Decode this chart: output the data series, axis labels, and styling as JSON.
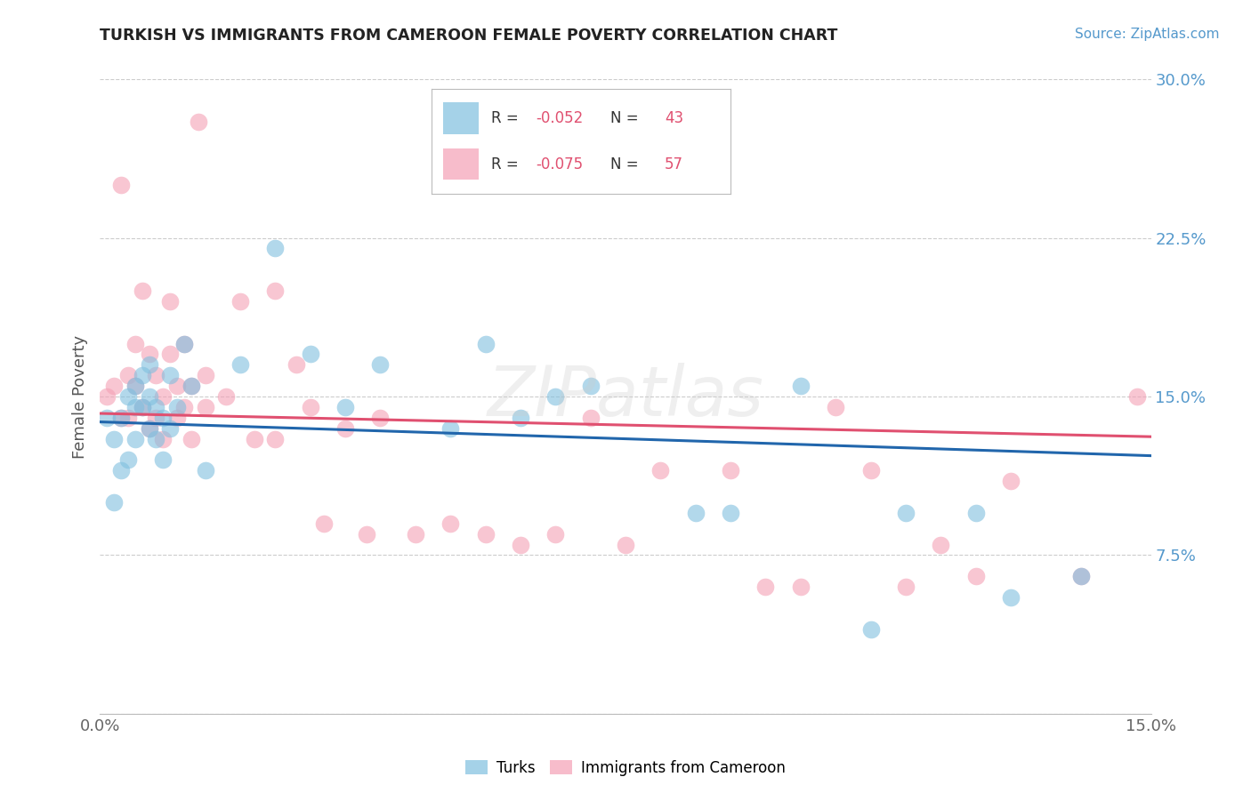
{
  "title": "TURKISH VS IMMIGRANTS FROM CAMEROON FEMALE POVERTY CORRELATION CHART",
  "source": "Source: ZipAtlas.com",
  "ylabel": "Female Poverty",
  "x_min": 0.0,
  "x_max": 0.15,
  "y_min": 0.0,
  "y_max": 0.3,
  "legend_r1": "R = -0.052",
  "legend_n1": "N = 43",
  "legend_r2": "R = -0.075",
  "legend_n2": "N = 57",
  "blue_color": "#7fbfdf",
  "pink_color": "#f4a0b5",
  "blue_line_color": "#2166ac",
  "pink_line_color": "#e05070",
  "axis_label_color": "#5599cc",
  "watermark": "ZIPatlas",
  "turks_points_x": [
    0.001,
    0.002,
    0.002,
    0.003,
    0.003,
    0.004,
    0.004,
    0.005,
    0.005,
    0.005,
    0.006,
    0.006,
    0.007,
    0.007,
    0.007,
    0.008,
    0.008,
    0.009,
    0.009,
    0.01,
    0.01,
    0.011,
    0.012,
    0.013,
    0.015,
    0.02,
    0.025,
    0.03,
    0.035,
    0.04,
    0.05,
    0.055,
    0.06,
    0.065,
    0.07,
    0.085,
    0.09,
    0.1,
    0.11,
    0.115,
    0.125,
    0.13,
    0.14
  ],
  "turks_points_y": [
    0.14,
    0.1,
    0.13,
    0.115,
    0.14,
    0.12,
    0.15,
    0.13,
    0.145,
    0.155,
    0.145,
    0.16,
    0.135,
    0.15,
    0.165,
    0.13,
    0.145,
    0.12,
    0.14,
    0.135,
    0.16,
    0.145,
    0.175,
    0.155,
    0.115,
    0.165,
    0.22,
    0.17,
    0.145,
    0.165,
    0.135,
    0.175,
    0.14,
    0.15,
    0.155,
    0.095,
    0.095,
    0.155,
    0.04,
    0.095,
    0.095,
    0.055,
    0.065
  ],
  "cameroon_points_x": [
    0.001,
    0.002,
    0.003,
    0.003,
    0.004,
    0.004,
    0.005,
    0.005,
    0.006,
    0.006,
    0.007,
    0.007,
    0.008,
    0.008,
    0.009,
    0.009,
    0.01,
    0.01,
    0.011,
    0.011,
    0.012,
    0.012,
    0.013,
    0.013,
    0.014,
    0.015,
    0.015,
    0.018,
    0.02,
    0.022,
    0.025,
    0.025,
    0.028,
    0.03,
    0.032,
    0.035,
    0.038,
    0.04,
    0.045,
    0.05,
    0.055,
    0.06,
    0.065,
    0.07,
    0.075,
    0.08,
    0.09,
    0.095,
    0.1,
    0.105,
    0.11,
    0.115,
    0.12,
    0.125,
    0.13,
    0.14,
    0.148
  ],
  "cameroon_points_y": [
    0.15,
    0.155,
    0.14,
    0.25,
    0.14,
    0.16,
    0.155,
    0.175,
    0.145,
    0.2,
    0.135,
    0.17,
    0.14,
    0.16,
    0.15,
    0.13,
    0.17,
    0.195,
    0.155,
    0.14,
    0.175,
    0.145,
    0.155,
    0.13,
    0.28,
    0.145,
    0.16,
    0.15,
    0.195,
    0.13,
    0.2,
    0.13,
    0.165,
    0.145,
    0.09,
    0.135,
    0.085,
    0.14,
    0.085,
    0.09,
    0.085,
    0.08,
    0.085,
    0.14,
    0.08,
    0.115,
    0.115,
    0.06,
    0.06,
    0.145,
    0.115,
    0.06,
    0.08,
    0.065,
    0.11,
    0.065,
    0.15
  ],
  "blue_line_x0": 0.0,
  "blue_line_y0": 0.138,
  "blue_line_x1": 0.15,
  "blue_line_y1": 0.122,
  "pink_line_x0": 0.0,
  "pink_line_y0": 0.142,
  "pink_line_x1": 0.15,
  "pink_line_y1": 0.131
}
